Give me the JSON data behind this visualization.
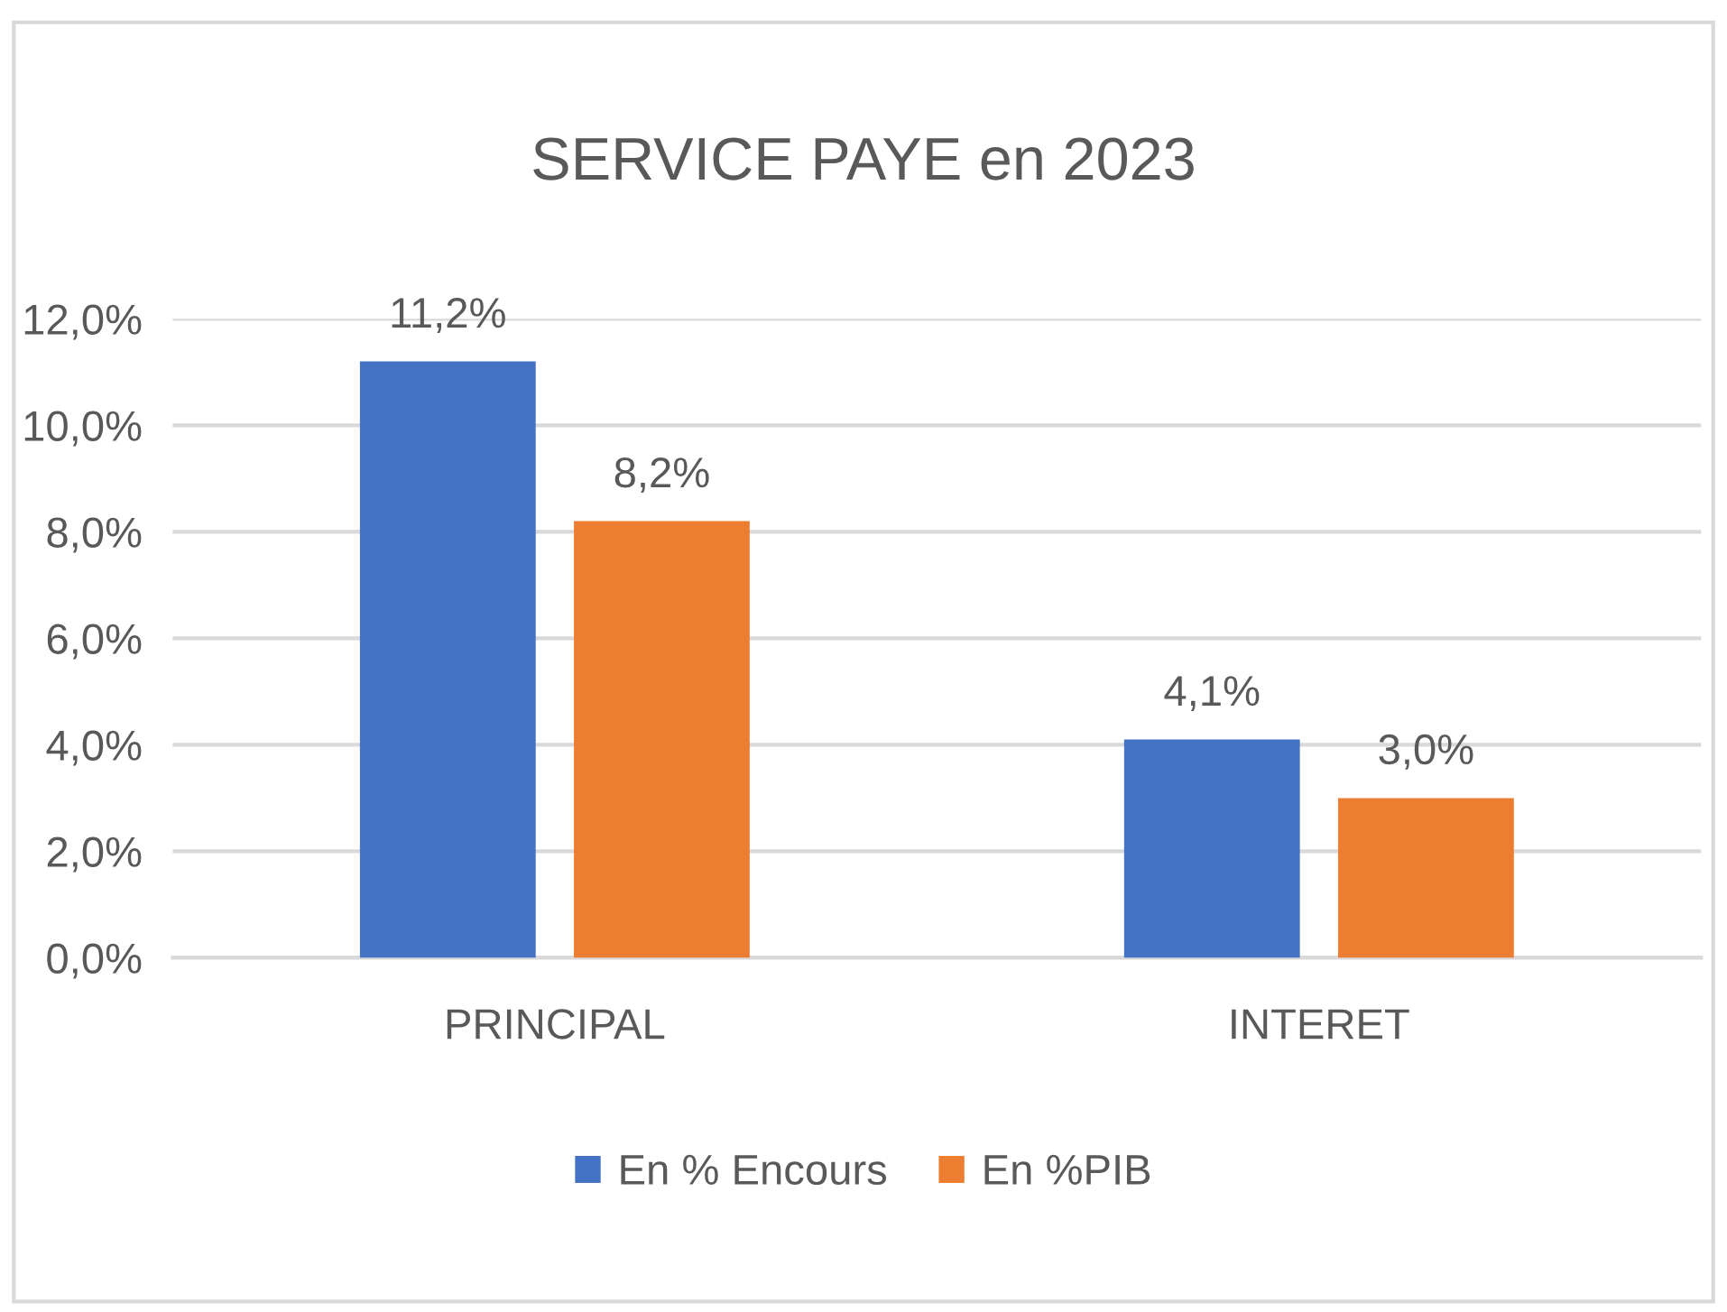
{
  "chart_data": {
    "type": "bar",
    "title": "SERVICE PAYE en 2023",
    "categories": [
      "PRINCIPAL",
      "INTERET"
    ],
    "series": [
      {
        "name": "En % Encours",
        "color": "#4472c4",
        "values": [
          11.2,
          4.1
        ],
        "value_labels": [
          "11,2%",
          "4,1%"
        ]
      },
      {
        "name": "En %PIB",
        "color": "#ed7d31",
        "values": [
          8.2,
          3.0
        ],
        "value_labels": [
          "8,2%",
          "3,0%"
        ]
      }
    ],
    "ylim": [
      0,
      12
    ],
    "yticks": [
      {
        "value": 0,
        "label": "0,0%"
      },
      {
        "value": 2,
        "label": "2,0%"
      },
      {
        "value": 4,
        "label": "4,0%"
      },
      {
        "value": 6,
        "label": "6,0%"
      },
      {
        "value": 8,
        "label": "8,0%"
      },
      {
        "value": 10,
        "label": "10,0%"
      },
      {
        "value": 12,
        "label": "12,0%"
      }
    ],
    "grid": "y",
    "legend": "bottom"
  }
}
